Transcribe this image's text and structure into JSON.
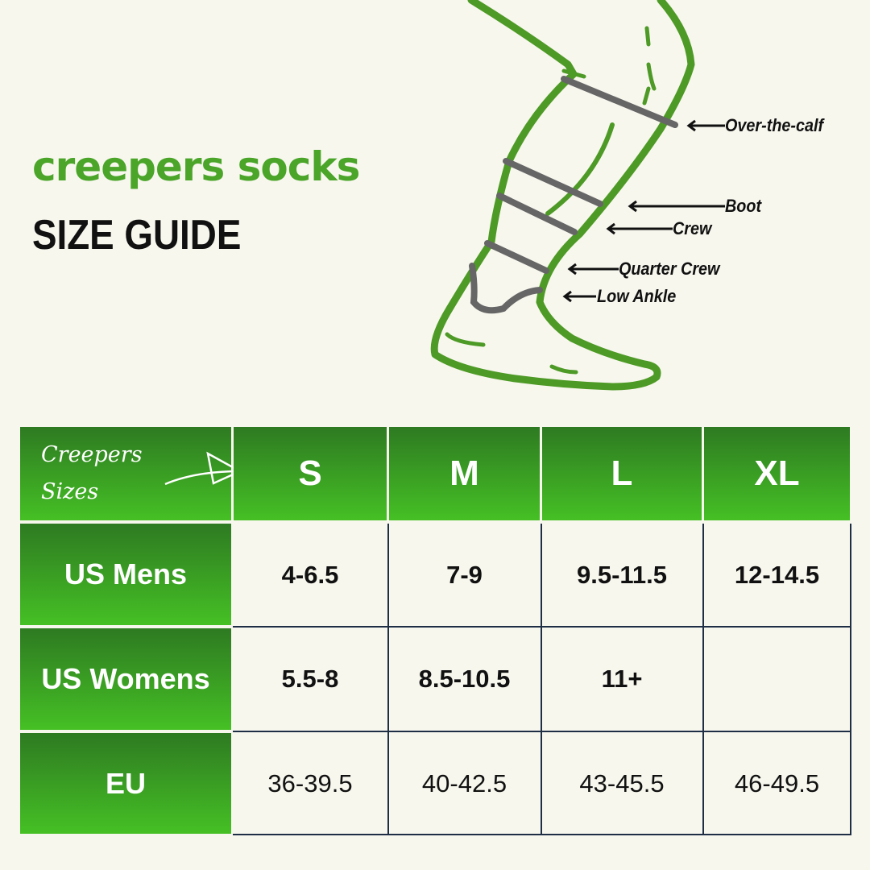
{
  "header": {
    "brand": "Creepers Socks",
    "subtitle": "SIZE GUIDE"
  },
  "diagram": {
    "labels": [
      "Over-the-calf",
      "Boot",
      "Crew",
      "Quarter Crew",
      "Low Ankle"
    ],
    "outline_color": "#4e9a26",
    "band_color": "#666666"
  },
  "table": {
    "corner": [
      "Creepers",
      "Sizes"
    ],
    "columns": [
      "S",
      "M",
      "L",
      "XL"
    ],
    "rows": [
      {
        "label": "US Mens",
        "values": [
          "4-6.5",
          "7-9",
          "9.5-11.5",
          "12-14.5"
        ]
      },
      {
        "label": "US Womens",
        "values": [
          "5.5-8",
          "8.5-10.5",
          "11+",
          ""
        ]
      },
      {
        "label": "EU",
        "values": [
          "36-39.5",
          "40-42.5",
          "43-45.5",
          "46-49.5"
        ]
      }
    ],
    "header_gradient": [
      "#2e7a22",
      "#45c024"
    ]
  }
}
